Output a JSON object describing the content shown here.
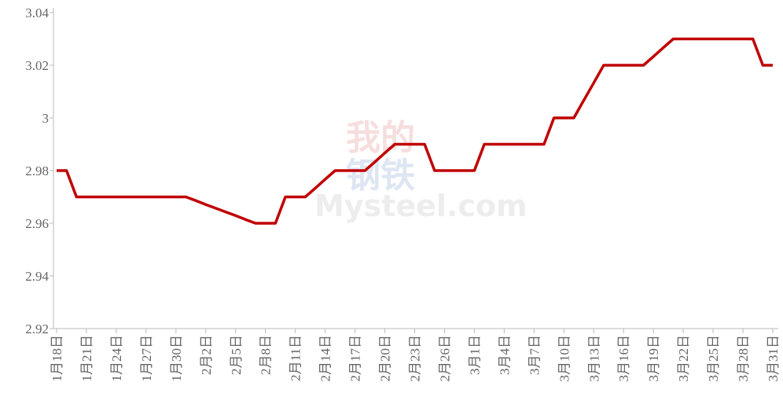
{
  "chart_data": {
    "type": "line",
    "watermark": [
      "我的",
      "钢铁",
      "Mysteel.com"
    ],
    "categories": [
      "1月18日",
      null,
      null,
      "1月21日",
      null,
      null,
      "1月24日",
      null,
      null,
      "1月27日",
      null,
      null,
      "1月30日",
      null,
      null,
      "2月2日",
      null,
      null,
      "2月5日",
      null,
      null,
      "2月8日",
      null,
      null,
      "2月11日",
      null,
      null,
      "2月14日",
      null,
      null,
      "2月17日",
      null,
      null,
      "2月20日",
      null,
      null,
      "2月23日",
      null,
      null,
      "2月26日",
      null,
      null,
      "3月1日",
      null,
      null,
      "3月4日",
      null,
      null,
      "3月7日",
      null,
      null,
      "3月10日",
      null,
      null,
      "3月13日",
      null,
      null,
      "3月16日",
      null,
      null,
      "3月19日",
      null,
      null,
      "3月22日",
      null,
      null,
      "3月25日",
      null,
      null,
      "3月28日",
      null,
      null,
      "3月31日"
    ],
    "series": [
      {
        "color": "#c00000",
        "values": [
          2.98,
          2.98,
          2.97,
          2.97,
          2.97,
          2.97,
          2.97,
          2.97,
          2.97,
          2.97,
          2.97,
          2.97,
          2.97,
          2.97,
          2.9686,
          2.9671,
          2.9657,
          2.9643,
          2.9629,
          2.9614,
          2.96,
          2.96,
          2.96,
          2.97,
          2.97,
          2.97,
          2.9733,
          2.9767,
          2.98,
          2.98,
          2.98,
          2.98,
          2.9833,
          2.9867,
          2.99,
          2.99,
          2.99,
          2.99,
          2.98,
          2.98,
          2.98,
          2.98,
          2.98,
          2.99,
          2.99,
          2.99,
          2.99,
          2.99,
          2.99,
          2.99,
          3.0,
          3.0,
          3.0,
          3.0067,
          3.0133,
          3.02,
          3.02,
          3.02,
          3.02,
          3.02,
          3.0233,
          3.0267,
          3.03,
          3.03,
          3.03,
          3.03,
          3.03,
          3.03,
          3.03,
          3.03,
          3.03,
          3.02,
          3.02
        ]
      }
    ],
    "ylim": [
      2.92,
      3.04
    ],
    "yticks": [
      2.92,
      2.94,
      2.96,
      2.98,
      3,
      3.02,
      3.04
    ],
    "grid": false
  }
}
